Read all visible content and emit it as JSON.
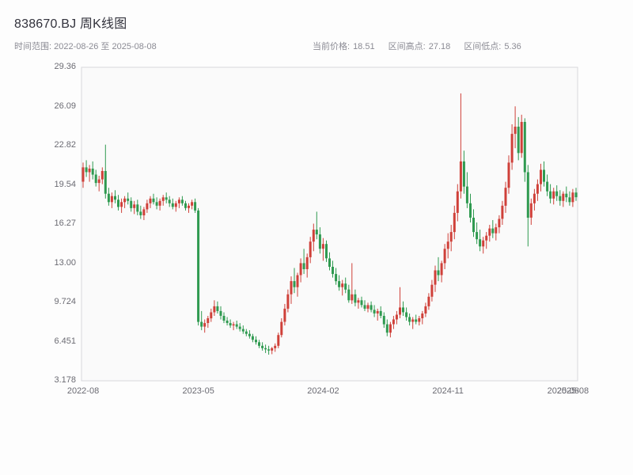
{
  "page": {
    "title": "838670.BJ 周K线图",
    "subtitle_left": "时间范围: 2022-08-26 至 2025-08-08",
    "stats": {
      "current_label": "当前价格:",
      "current_value": "18.51",
      "high_label": "区间高点:",
      "high_value": "27.18",
      "low_label": "区间低点:",
      "low_value": "5.36"
    }
  },
  "chart_data": {
    "type": "candlestick",
    "title": "838670.BJ 周K线图",
    "interval": "weekly",
    "date_range": [
      "2022-08-26",
      "2025-08-08"
    ],
    "current_price": 18.51,
    "range_high": 27.18,
    "range_low": 5.36,
    "ylim": [
      3.178,
      29.36
    ],
    "y_ticks": [
      "29.36",
      "26.09",
      "22.82",
      "19.54",
      "16.27",
      "13.00",
      "9.724",
      "6.451",
      "3.178"
    ],
    "x_ticks": [
      {
        "index": 0,
        "label": "2022-08"
      },
      {
        "index": 36,
        "label": "2023-05"
      },
      {
        "index": 75,
        "label": "2024-02"
      },
      {
        "index": 114,
        "label": "2024-11"
      },
      {
        "index": 150,
        "label": "2025-08"
      },
      {
        "index": 153,
        "label": "2025-08"
      }
    ],
    "colors": {
      "up": "#cf4039",
      "down": "#2f9a50",
      "border": "#d8d8dc",
      "plot_bg": "#fafafa",
      "title_text": "#32323c",
      "subtitle_text": "#8b8b94",
      "tick_text": "#6b6b73"
    },
    "legend": "none",
    "grid": false,
    "candles": [
      [
        19.8,
        21.4,
        19.3,
        21.0
      ],
      [
        21.0,
        21.6,
        20.2,
        20.6
      ],
      [
        20.6,
        21.2,
        19.8,
        20.9
      ],
      [
        20.9,
        21.5,
        20.0,
        20.4
      ],
      [
        20.4,
        20.8,
        19.4,
        19.7
      ],
      [
        19.7,
        20.3,
        19.0,
        20.0
      ],
      [
        20.0,
        21.0,
        19.6,
        20.7
      ],
      [
        20.7,
        22.9,
        18.4,
        18.8
      ],
      [
        18.8,
        19.3,
        17.8,
        18.1
      ],
      [
        18.1,
        18.9,
        17.6,
        18.6
      ],
      [
        18.6,
        19.1,
        18.0,
        18.3
      ],
      [
        18.3,
        18.7,
        17.4,
        17.7
      ],
      [
        17.7,
        18.4,
        17.2,
        18.1
      ],
      [
        18.1,
        18.6,
        17.6,
        18.4
      ],
      [
        18.4,
        18.9,
        17.9,
        18.2
      ],
      [
        18.2,
        18.5,
        17.3,
        17.6
      ],
      [
        17.6,
        18.2,
        17.1,
        17.9
      ],
      [
        17.9,
        18.3,
        17.0,
        17.3
      ],
      [
        17.3,
        17.8,
        16.7,
        17.0
      ],
      [
        17.0,
        17.7,
        16.6,
        17.5
      ],
      [
        17.5,
        18.3,
        17.2,
        18.0
      ],
      [
        18.0,
        18.6,
        17.6,
        18.4
      ],
      [
        18.4,
        18.8,
        17.9,
        18.1
      ],
      [
        18.1,
        18.5,
        17.5,
        17.8
      ],
      [
        17.8,
        18.4,
        17.4,
        18.2
      ],
      [
        18.2,
        18.7,
        17.8,
        18.5
      ],
      [
        18.5,
        18.9,
        18.0,
        18.3
      ],
      [
        18.3,
        18.6,
        17.7,
        18.0
      ],
      [
        18.0,
        18.4,
        17.5,
        17.7
      ],
      [
        17.7,
        18.2,
        17.3,
        18.0
      ],
      [
        18.0,
        18.5,
        17.6,
        18.3
      ],
      [
        18.3,
        18.6,
        17.8,
        18.0
      ],
      [
        18.0,
        18.2,
        17.4,
        17.6
      ],
      [
        17.6,
        18.0,
        17.2,
        17.8
      ],
      [
        17.8,
        18.3,
        17.5,
        18.1
      ],
      [
        18.1,
        18.4,
        17.2,
        17.4
      ],
      [
        17.4,
        17.6,
        7.8,
        8.1
      ],
      [
        8.1,
        9.0,
        7.4,
        7.7
      ],
      [
        7.7,
        8.3,
        7.2,
        8.0
      ],
      [
        8.0,
        8.6,
        7.6,
        8.4
      ],
      [
        8.4,
        9.2,
        8.1,
        8.9
      ],
      [
        8.9,
        9.9,
        8.6,
        9.4
      ],
      [
        9.4,
        9.8,
        8.8,
        9.0
      ],
      [
        9.0,
        9.4,
        8.3,
        8.6
      ],
      [
        8.6,
        8.9,
        8.0,
        8.2
      ],
      [
        8.2,
        8.5,
        7.8,
        8.0
      ],
      [
        8.0,
        8.3,
        7.6,
        7.8
      ],
      [
        7.8,
        8.1,
        7.4,
        7.9
      ],
      [
        7.9,
        8.2,
        7.5,
        7.7
      ],
      [
        7.7,
        8.0,
        7.3,
        7.5
      ],
      [
        7.5,
        7.8,
        7.1,
        7.3
      ],
      [
        7.3,
        7.5,
        6.9,
        7.1
      ],
      [
        7.1,
        7.4,
        6.7,
        6.9
      ],
      [
        6.9,
        7.1,
        6.4,
        6.6
      ],
      [
        6.6,
        6.9,
        6.2,
        6.4
      ],
      [
        6.4,
        6.6,
        5.9,
        6.1
      ],
      [
        6.1,
        6.4,
        5.7,
        5.9
      ],
      [
        5.9,
        6.2,
        5.5,
        5.8
      ],
      [
        5.8,
        6.1,
        5.36,
        5.7
      ],
      [
        5.7,
        6.0,
        5.4,
        5.9
      ],
      [
        5.9,
        6.3,
        5.6,
        6.1
      ],
      [
        6.1,
        7.2,
        5.9,
        7.0
      ],
      [
        7.0,
        8.4,
        6.8,
        8.1
      ],
      [
        8.1,
        9.6,
        7.8,
        9.2
      ],
      [
        9.2,
        10.8,
        8.9,
        10.4
      ],
      [
        10.4,
        11.9,
        9.6,
        11.5
      ],
      [
        11.5,
        12.6,
        10.5,
        11.0
      ],
      [
        11.0,
        12.2,
        10.2,
        12.0
      ],
      [
        12.0,
        13.4,
        11.4,
        13.0
      ],
      [
        13.0,
        14.2,
        12.1,
        12.5
      ],
      [
        12.5,
        13.8,
        11.8,
        13.5
      ],
      [
        13.5,
        15.2,
        13.0,
        14.8
      ],
      [
        14.8,
        16.3,
        14.0,
        15.8
      ],
      [
        15.8,
        17.3,
        15.0,
        15.4
      ],
      [
        15.4,
        16.0,
        13.8,
        14.2
      ],
      [
        14.2,
        15.1,
        13.2,
        14.6
      ],
      [
        14.6,
        14.9,
        13.1,
        13.4
      ],
      [
        13.4,
        13.9,
        12.4,
        12.7
      ],
      [
        12.7,
        13.2,
        11.8,
        12.1
      ],
      [
        12.1,
        12.6,
        11.2,
        11.5
      ],
      [
        11.5,
        12.0,
        10.7,
        11.0
      ],
      [
        11.0,
        11.6,
        10.3,
        11.3
      ],
      [
        11.3,
        11.8,
        10.5,
        10.8
      ],
      [
        10.8,
        11.2,
        9.7,
        9.9
      ],
      [
        9.9,
        13.0,
        9.6,
        10.4
      ],
      [
        10.4,
        10.8,
        9.4,
        9.7
      ],
      [
        9.7,
        10.1,
        9.2,
        9.9
      ],
      [
        9.9,
        10.2,
        9.3,
        9.5
      ],
      [
        9.5,
        9.9,
        9.0,
        9.2
      ],
      [
        9.2,
        9.7,
        8.9,
        9.5
      ],
      [
        9.5,
        9.8,
        8.9,
        9.1
      ],
      [
        9.1,
        9.5,
        8.5,
        8.8
      ],
      [
        8.8,
        9.2,
        8.2,
        9.0
      ],
      [
        9.0,
        9.4,
        8.4,
        8.6
      ],
      [
        8.6,
        8.9,
        7.6,
        7.9
      ],
      [
        7.9,
        8.3,
        6.9,
        7.2
      ],
      [
        7.2,
        8.1,
        6.8,
        7.9
      ],
      [
        7.9,
        8.6,
        7.5,
        8.3
      ],
      [
        8.3,
        9.0,
        7.9,
        8.7
      ],
      [
        8.7,
        11.0,
        8.4,
        9.3
      ],
      [
        9.3,
        9.8,
        8.6,
        8.9
      ],
      [
        8.9,
        9.3,
        8.2,
        8.5
      ],
      [
        8.5,
        8.8,
        7.8,
        8.1
      ],
      [
        8.1,
        8.5,
        7.5,
        8.3
      ],
      [
        8.3,
        8.7,
        7.9,
        8.1
      ],
      [
        8.1,
        8.6,
        7.8,
        8.4
      ],
      [
        8.4,
        9.0,
        7.9,
        8.8
      ],
      [
        8.8,
        9.7,
        8.5,
        9.4
      ],
      [
        9.4,
        10.5,
        9.1,
        10.2
      ],
      [
        10.2,
        11.6,
        9.8,
        11.2
      ],
      [
        11.2,
        12.8,
        10.6,
        12.4
      ],
      [
        12.4,
        13.5,
        11.5,
        12.0
      ],
      [
        12.0,
        13.2,
        11.4,
        13.0
      ],
      [
        13.0,
        14.6,
        12.5,
        14.2
      ],
      [
        14.2,
        15.5,
        13.4,
        14.8
      ],
      [
        14.8,
        16.2,
        14.0,
        15.6
      ],
      [
        15.6,
        17.8,
        15.0,
        17.2
      ],
      [
        17.2,
        19.6,
        16.5,
        19.0
      ],
      [
        19.0,
        27.18,
        18.4,
        21.5
      ],
      [
        21.5,
        22.4,
        18.8,
        19.4
      ],
      [
        19.4,
        20.6,
        17.6,
        18.0
      ],
      [
        18.0,
        18.8,
        16.4,
        16.8
      ],
      [
        16.8,
        17.5,
        15.2,
        15.6
      ],
      [
        15.6,
        16.4,
        14.6,
        15.0
      ],
      [
        15.0,
        15.8,
        14.0,
        14.4
      ],
      [
        14.4,
        15.2,
        13.8,
        14.9
      ],
      [
        14.9,
        15.6,
        14.2,
        15.3
      ],
      [
        15.3,
        16.2,
        14.8,
        15.9
      ],
      [
        15.9,
        16.6,
        15.1,
        15.5
      ],
      [
        15.5,
        16.3,
        14.9,
        16.0
      ],
      [
        16.0,
        17.0,
        15.5,
        16.7
      ],
      [
        16.7,
        18.2,
        16.2,
        17.8
      ],
      [
        17.8,
        19.8,
        17.2,
        19.3
      ],
      [
        19.3,
        22.0,
        18.8,
        21.4
      ],
      [
        21.4,
        24.6,
        20.8,
        23.8
      ],
      [
        23.8,
        26.1,
        22.6,
        24.4
      ],
      [
        24.4,
        25.2,
        21.6,
        22.2
      ],
      [
        22.2,
        25.4,
        21.8,
        24.8
      ],
      [
        24.8,
        25.1,
        19.8,
        20.6
      ],
      [
        20.6,
        21.2,
        14.4,
        16.8
      ],
      [
        16.8,
        18.4,
        16.2,
        18.0
      ],
      [
        18.0,
        19.2,
        17.4,
        18.8
      ],
      [
        18.8,
        20.0,
        18.2,
        19.6
      ],
      [
        19.6,
        21.3,
        19.0,
        20.8
      ],
      [
        20.8,
        21.5,
        19.4,
        19.8
      ],
      [
        19.8,
        20.4,
        18.6,
        19.0
      ],
      [
        19.0,
        19.6,
        18.0,
        18.4
      ],
      [
        18.4,
        19.3,
        17.9,
        19.0
      ],
      [
        19.0,
        19.5,
        18.2,
        18.6
      ],
      [
        18.6,
        19.1,
        17.8,
        18.2
      ],
      [
        18.2,
        19.0,
        17.7,
        18.8
      ],
      [
        18.8,
        19.4,
        18.1,
        18.5
      ],
      [
        18.5,
        19.0,
        17.8,
        18.1
      ],
      [
        18.1,
        19.2,
        17.7,
        18.9
      ],
      [
        18.9,
        19.3,
        18.2,
        18.51
      ]
    ]
  }
}
